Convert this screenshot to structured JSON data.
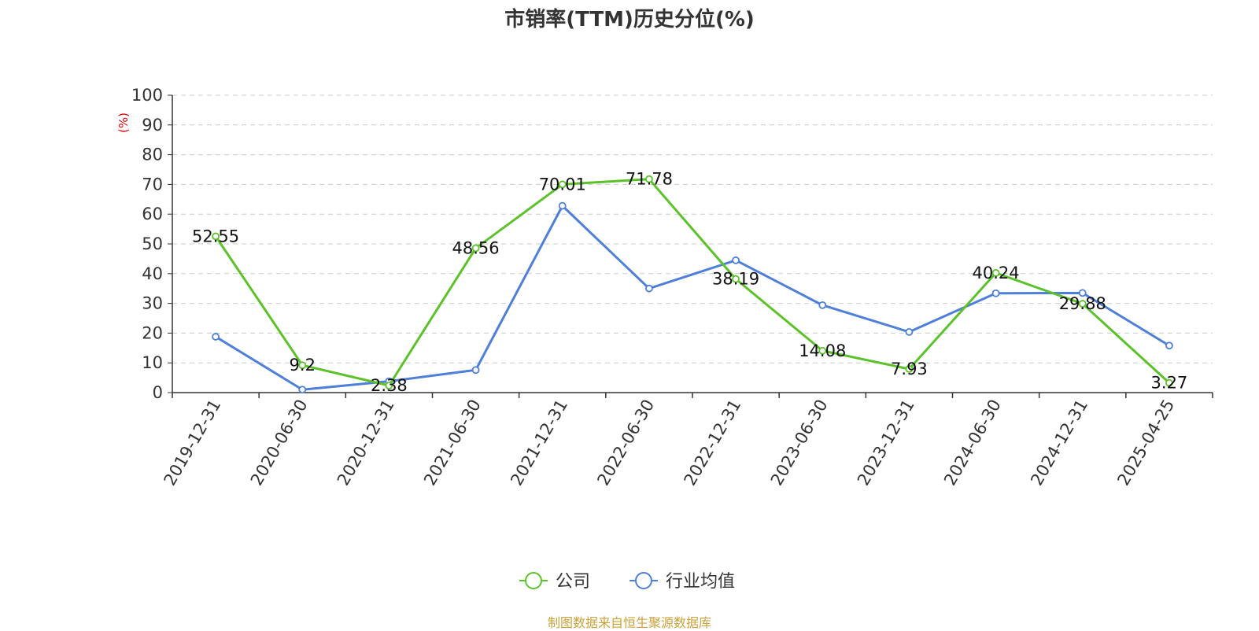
{
  "chart_data": {
    "type": "line",
    "title": "市销率(TTM)历史分位(%)",
    "ylabel": "(%)",
    "ylim": [
      0,
      100
    ],
    "yticks": [
      0,
      10,
      20,
      30,
      40,
      50,
      60,
      70,
      80,
      90,
      100
    ],
    "grid": true,
    "legend_position": "bottom-center",
    "categories": [
      "2019-12-31",
      "2020-06-30",
      "2020-12-31",
      "2021-06-30",
      "2021-12-31",
      "2022-06-30",
      "2022-12-31",
      "2023-06-30",
      "2023-12-31",
      "2024-06-30",
      "2024-12-31",
      "2025-04-25"
    ],
    "series": [
      {
        "name": "公司",
        "color": "#5cc22a",
        "values": [
          52.55,
          9.2,
          2.38,
          48.56,
          70.01,
          71.78,
          38.19,
          14.08,
          7.93,
          40.24,
          29.88,
          3.27
        ],
        "labels": [
          "52.55",
          "9.2",
          "2.38",
          "48.56",
          "70.01",
          "71.78",
          "38.19",
          "14.08",
          "7.93",
          "40.24",
          "29.88",
          "3.27"
        ]
      },
      {
        "name": "行业均值",
        "color": "#4e7fd9",
        "values": [
          18.8,
          1.0,
          3.8,
          7.6,
          62.8,
          35.0,
          44.5,
          29.4,
          20.4,
          33.4,
          33.5,
          15.8
        ]
      }
    ]
  },
  "source": "制图数据来自恒生聚源数据库"
}
